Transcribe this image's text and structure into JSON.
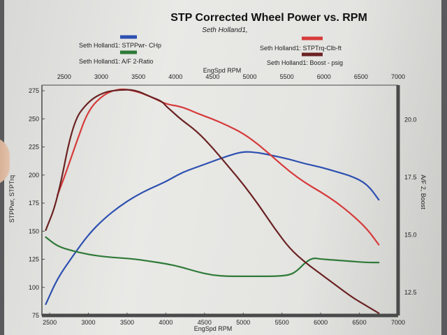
{
  "chart_data": {
    "type": "line",
    "title": "STP Corrected Wheel Power vs. RPM",
    "subtitle": "Seth Holland1,",
    "x_top_label": "EngSpd  RPM",
    "x_bottom_label": "EngSpd RPM",
    "y_left_label": "STPPwr, STPTrq",
    "y_right_label": "A/F 2, Boost",
    "xlim": [
      2400,
      7000
    ],
    "top_xlim": [
      2200,
      7000
    ],
    "ylim_left": [
      75,
      280
    ],
    "ylim_right": [
      11.5,
      21.5
    ],
    "x_ticks": [
      "2500",
      "3000",
      "3500",
      "4000",
      "4500",
      "5000",
      "5500",
      "6000",
      "6500",
      "7000"
    ],
    "y_left_ticks": [
      "75",
      "100",
      "125",
      "150",
      "175",
      "200",
      "225",
      "250",
      "275"
    ],
    "y_right_ticks": [
      "12.5",
      "15.0",
      "17.5",
      "20.0"
    ],
    "grid": false,
    "legend_position": "top",
    "legend": [
      {
        "label": "Seth Holland1:  STPPwr- CHp",
        "color": "#2c4fb0"
      },
      {
        "label": "Seth Holland1:  A/F 2-Ratio",
        "color": "#2e7a38"
      },
      {
        "label": "Seth Holland1:  STPTrq-Clb-ft",
        "color": "#d63a3a"
      },
      {
        "label": "Seth Holland1:  Boost - psig",
        "color": "#6a2222"
      }
    ],
    "series": [
      {
        "name": "Seth Holland1:  STPPwr- CHp",
        "axis": "left",
        "color": "#2c4fb0",
        "x": [
          2450,
          2600,
          2800,
          3000,
          3200,
          3400,
          3600,
          3800,
          4000,
          4200,
          4400,
          4600,
          4800,
          5000,
          5200,
          5400,
          5600,
          5800,
          6000,
          6200,
          6400,
          6600,
          6750
        ],
        "y": [
          85,
          108,
          128,
          147,
          161,
          172,
          181,
          188,
          194,
          202,
          207,
          212,
          217,
          221,
          220,
          217,
          214,
          210,
          207,
          203,
          199,
          192,
          178
        ]
      },
      {
        "name": "Seth Holland1:  STPTrq-Clb-ft",
        "axis": "left",
        "color": "#d63a3a",
        "x": [
          2600,
          2700,
          2850,
          3000,
          3200,
          3400,
          3600,
          3800,
          4000,
          4200,
          4400,
          4600,
          4800,
          5000,
          5200,
          5400,
          5600,
          5800,
          6000,
          6200,
          6400,
          6600,
          6750
        ],
        "y": [
          182,
          200,
          230,
          258,
          272,
          277,
          275,
          270,
          263,
          261,
          255,
          250,
          244,
          237,
          227,
          215,
          203,
          193,
          185,
          176,
          165,
          152,
          138
        ]
      },
      {
        "name": "Seth Holland1:  A/F 2-Ratio",
        "axis": "right",
        "color": "#2e7a38",
        "x": [
          2450,
          2600,
          2800,
          3000,
          3200,
          3400,
          3600,
          3800,
          4000,
          4200,
          4400,
          4600,
          4800,
          5000,
          5200,
          5400,
          5600,
          5700,
          5800,
          5900,
          6000,
          6200,
          6400,
          6600,
          6750
        ],
        "y": [
          14.9,
          14.5,
          14.3,
          14.15,
          14.05,
          14.0,
          13.95,
          13.85,
          13.75,
          13.6,
          13.4,
          13.25,
          13.2,
          13.2,
          13.2,
          13.2,
          13.25,
          13.45,
          13.8,
          14.0,
          13.95,
          13.9,
          13.85,
          13.8,
          13.8
        ]
      },
      {
        "name": "Seth Holland1:  Boost - psig",
        "axis": "right",
        "color": "#6a2222",
        "x": [
          2450,
          2600,
          2800,
          3000,
          3200,
          3400,
          3600,
          3800,
          3950,
          4000,
          4100,
          4200,
          4400,
          4600,
          4800,
          5000,
          5200,
          5400,
          5600,
          5800,
          6000,
          6200,
          6400,
          6600,
          6750
        ],
        "y": [
          15.2,
          16.5,
          19.9,
          20.8,
          21.2,
          21.3,
          21.3,
          21.0,
          20.8,
          20.6,
          20.3,
          20.0,
          19.5,
          18.8,
          18.0,
          17.2,
          16.3,
          15.3,
          14.4,
          13.8,
          13.3,
          12.8,
          12.3,
          11.9,
          11.6
        ]
      }
    ]
  }
}
